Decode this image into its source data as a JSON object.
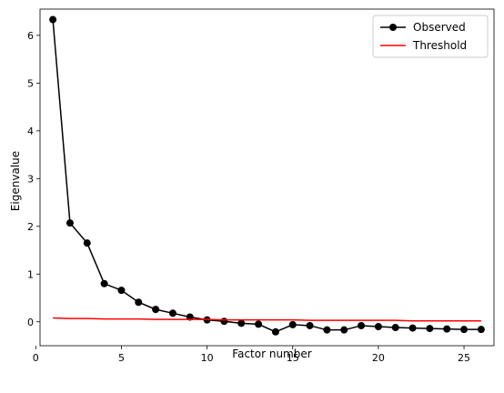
{
  "chart_data": {
    "type": "line",
    "title": "",
    "xlabel": "Factor number",
    "ylabel": "Eigenvalue",
    "xlim": [
      0.25,
      26.75
    ],
    "ylim": [
      -0.5,
      6.55
    ],
    "xticks": [
      0,
      5,
      10,
      15,
      20,
      25
    ],
    "yticks": [
      0,
      1,
      2,
      3,
      4,
      5,
      6
    ],
    "grid": false,
    "legend_position": "top-right",
    "x": [
      1,
      2,
      3,
      4,
      5,
      6,
      7,
      8,
      9,
      10,
      11,
      12,
      13,
      14,
      15,
      16,
      17,
      18,
      19,
      20,
      21,
      22,
      23,
      24,
      25,
      26
    ],
    "series": [
      {
        "name": "Observed",
        "color": "#000000",
        "marker": "circle",
        "values": [
          6.33,
          2.07,
          1.65,
          0.8,
          0.66,
          0.41,
          0.26,
          0.18,
          0.1,
          0.04,
          0.01,
          -0.03,
          -0.05,
          -0.21,
          -0.06,
          -0.08,
          -0.17,
          -0.17,
          -0.08,
          -0.1,
          -0.12,
          -0.13,
          -0.14,
          -0.15,
          -0.16,
          -0.16
        ]
      },
      {
        "name": "Threshold",
        "color": "#ff0000",
        "marker": "none",
        "values": [
          0.08,
          0.07,
          0.07,
          0.06,
          0.06,
          0.06,
          0.05,
          0.05,
          0.05,
          0.05,
          0.04,
          0.04,
          0.04,
          0.04,
          0.04,
          0.03,
          0.03,
          0.03,
          0.03,
          0.03,
          0.03,
          0.02,
          0.02,
          0.02,
          0.02,
          0.02
        ]
      }
    ]
  }
}
